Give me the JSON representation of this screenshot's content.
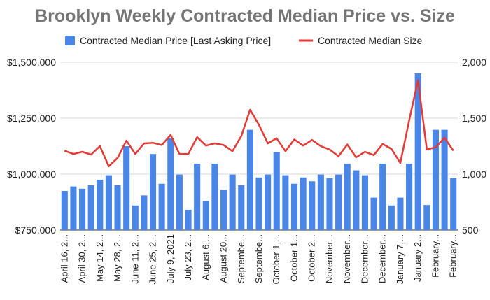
{
  "chart_data": {
    "type": "bar",
    "title": "Brooklyn Weekly Contracted Median Price vs. Size",
    "legend_position": "top",
    "grid": true,
    "categories": [
      "April 16, 2...",
      "",
      "April 30, 2...",
      "",
      "May 14, 2...",
      "",
      "May 28, 2...",
      "",
      "June 11, 2...",
      "",
      "June 25, 2...",
      "",
      "July 9, 2021",
      "",
      "July 23, 2...",
      "",
      "August 6,...",
      "",
      "August 20...",
      "",
      "Septembe...",
      "",
      "Septembe...",
      "",
      "October 1,...",
      "",
      "October 1...",
      "",
      "October 2...",
      "",
      "November...",
      "",
      "November...",
      "",
      "December...",
      "",
      "December...",
      "",
      "January 7,...",
      "",
      "January 2...",
      "",
      "February...",
      "",
      "February..."
    ],
    "y_axis_left": {
      "min": 750000,
      "max": 1500000,
      "ticks": [
        "$750,000",
        "$1,000,000",
        "$1,250,000",
        "$1,500,000"
      ]
    },
    "y_axis_right": {
      "min": 500,
      "max": 2000,
      "ticks": [
        "500",
        "1,000",
        "1,500",
        "2,000"
      ]
    },
    "series": [
      {
        "name": "Contracted Median Price [Last Asking Price]",
        "type": "bar",
        "axis": "left",
        "color": "#4a86e8",
        "values": [
          925000,
          945000,
          935000,
          950000,
          975000,
          995000,
          950000,
          1125000,
          860000,
          905000,
          1090000,
          957000,
          1160000,
          998000,
          840000,
          1047000,
          880000,
          1047000,
          930000,
          998000,
          950000,
          1198000,
          985000,
          998000,
          1098000,
          995000,
          957000,
          985000,
          968000,
          998000,
          982000,
          998000,
          1047000,
          1017000,
          995000,
          895000,
          1047000,
          860000,
          895000,
          1047000,
          1450000,
          862000,
          1198000,
          1198000,
          982000
        ]
      },
      {
        "name": "Contracted Median Size",
        "type": "line",
        "axis": "right",
        "color": "#e53935",
        "values": [
          1210,
          1180,
          1200,
          1175,
          1250,
          1070,
          1145,
          1300,
          1180,
          1275,
          1280,
          1260,
          1350,
          1180,
          1180,
          1330,
          1255,
          1275,
          1260,
          1205,
          1340,
          1575,
          1440,
          1275,
          1320,
          1205,
          1310,
          1255,
          1305,
          1250,
          1220,
          1160,
          1265,
          1150,
          1200,
          1170,
          1270,
          1225,
          1100,
          1480,
          1840,
          1220,
          1240,
          1325,
          1210
        ]
      }
    ]
  }
}
